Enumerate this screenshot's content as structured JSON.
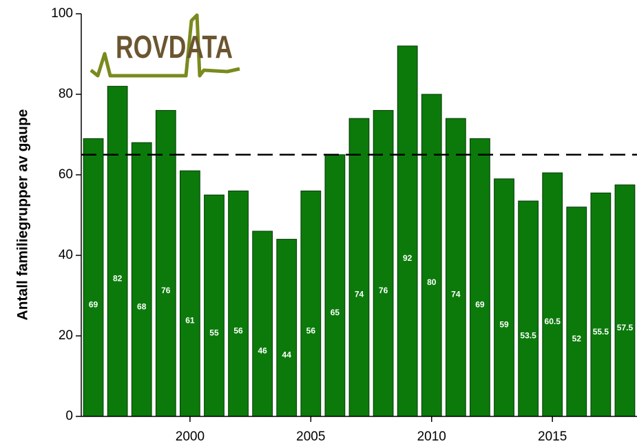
{
  "chart_data": {
    "type": "bar",
    "logo": "ROVDATA",
    "ylabel": "Antall familiegrupper av gaupe",
    "x": [
      1996,
      1997,
      1998,
      1999,
      2000,
      2001,
      2002,
      2003,
      2004,
      2005,
      2006,
      2007,
      2008,
      2009,
      2010,
      2011,
      2012,
      2013,
      2014,
      2015,
      2016,
      2017,
      2018
    ],
    "values": [
      69,
      82,
      68,
      76,
      61,
      55,
      56,
      46,
      44,
      56,
      65,
      74,
      76,
      92,
      80,
      74,
      69,
      59,
      53.5,
      60.5,
      52,
      55.5,
      57.5
    ],
    "color": "#0b7a0b",
    "reference_line": 65,
    "xlim": [
      1995.5,
      2018.5
    ],
    "xticks": [
      2000,
      2005,
      2010,
      2015
    ],
    "ylim": [
      0,
      100
    ],
    "yticks": [
      0,
      20,
      40,
      60,
      80,
      100
    ]
  }
}
